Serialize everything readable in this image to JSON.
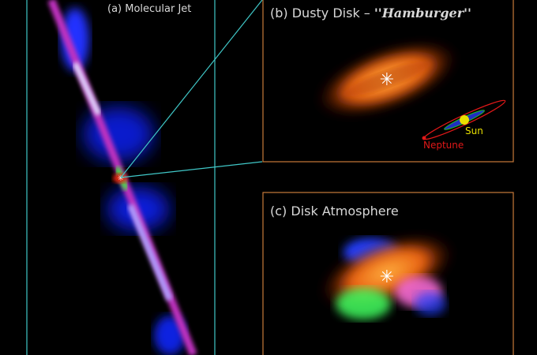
{
  "panels": {
    "a": {
      "label": "(a) Molecular Jet"
    },
    "b": {
      "label_prefix": "(b) Dusty Disk – ",
      "label_name": "''Hamburger''",
      "sun_label": "Sun",
      "neptune_label": "Neptune"
    },
    "c": {
      "label": "(c) Disk Atmosphere"
    }
  },
  "colors": {
    "jet_box": "#40c8c8",
    "disk_box": "#c87a3a",
    "sun": "#e8e000",
    "neptune": "#e01818"
  }
}
